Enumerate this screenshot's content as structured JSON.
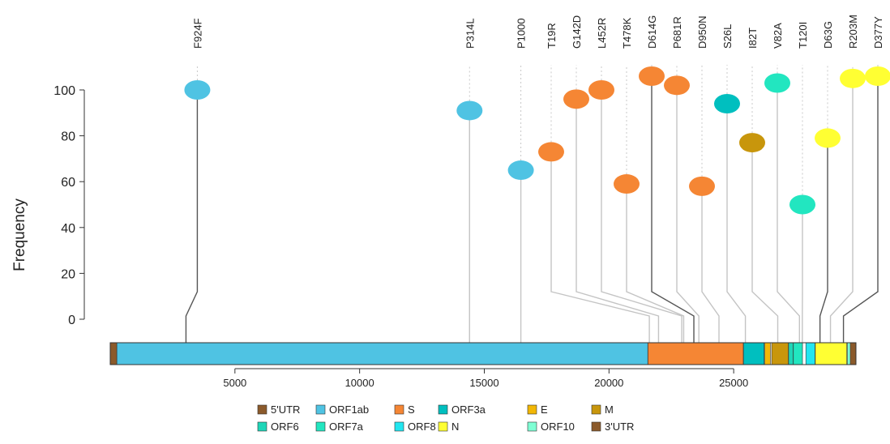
{
  "chart_data": {
    "type": "lollipop",
    "title": "",
    "ylabel": "Frequency",
    "xlabel": "",
    "ylim": [
      0,
      100
    ],
    "y_ticks": [
      0,
      20,
      40,
      60,
      80,
      100
    ],
    "xlim": [
      0,
      29903
    ],
    "x_ticks": [
      5000,
      10000,
      15000,
      20000,
      25000
    ],
    "genes": [
      {
        "name": "5'UTR",
        "start": 1,
        "end": 265,
        "color": "#8B5A2B"
      },
      {
        "name": "ORF1ab",
        "start": 266,
        "end": 21555,
        "color": "#4FC3E3"
      },
      {
        "name": "S",
        "start": 21563,
        "end": 25384,
        "color": "#F58634"
      },
      {
        "name": "ORF3a",
        "start": 25393,
        "end": 26220,
        "color": "#00BFBF"
      },
      {
        "name": "E",
        "start": 26245,
        "end": 26472,
        "color": "#F2B705"
      },
      {
        "name": "M",
        "start": 26523,
        "end": 27191,
        "color": "#C8960C"
      },
      {
        "name": "ORF6",
        "start": 27202,
        "end": 27387,
        "color": "#1ED6B8"
      },
      {
        "name": "ORF7a",
        "start": 27394,
        "end": 27759,
        "color": "#22E6C0"
      },
      {
        "name": "ORF8",
        "start": 27894,
        "end": 28259,
        "color": "#22E6F0"
      },
      {
        "name": "N",
        "start": 28274,
        "end": 29533,
        "color": "#FFFF33"
      },
      {
        "name": "ORF10",
        "start": 29558,
        "end": 29674,
        "color": "#7FFFD4"
      },
      {
        "name": "3'UTR",
        "start": 29675,
        "end": 29903,
        "color": "#8B5A2B"
      }
    ],
    "mutations": [
      {
        "label": "F924F",
        "position": 3037,
        "frequency": 100,
        "gene": "ORF1ab"
      },
      {
        "label": "P314L",
        "position": 14408,
        "frequency": 91,
        "gene": "ORF1ab"
      },
      {
        "label": "P1000",
        "position": 16466,
        "frequency": 65,
        "gene": "ORF1ab"
      },
      {
        "label": "T19R",
        "position": 21618,
        "frequency": 73,
        "gene": "S"
      },
      {
        "label": "G142D",
        "position": 21987,
        "frequency": 96,
        "gene": "S"
      },
      {
        "label": "L452R",
        "position": 22917,
        "frequency": 100,
        "gene": "S"
      },
      {
        "label": "T478K",
        "position": 22995,
        "frequency": 59,
        "gene": "S"
      },
      {
        "label": "D614G",
        "position": 23403,
        "frequency": 106,
        "gene": "S"
      },
      {
        "label": "P681R",
        "position": 23604,
        "frequency": 102,
        "gene": "S"
      },
      {
        "label": "D950N",
        "position": 24410,
        "frequency": 58,
        "gene": "S"
      },
      {
        "label": "S26L",
        "position": 25469,
        "frequency": 94,
        "gene": "ORF3a"
      },
      {
        "label": "I82T",
        "position": 26767,
        "frequency": 77,
        "gene": "M"
      },
      {
        "label": "V82A",
        "position": 27638,
        "frequency": 103,
        "gene": "ORF7a"
      },
      {
        "label": "T120I",
        "position": 27752,
        "frequency": 50,
        "gene": "ORF7a"
      },
      {
        "label": "D63G",
        "position": 28461,
        "frequency": 79,
        "gene": "N"
      },
      {
        "label": "R203M",
        "position": 28881,
        "frequency": 105,
        "gene": "N"
      },
      {
        "label": "D377Y",
        "position": 29402,
        "frequency": 106,
        "gene": "N"
      }
    ],
    "legend_placement": "bottom",
    "grid": false
  }
}
